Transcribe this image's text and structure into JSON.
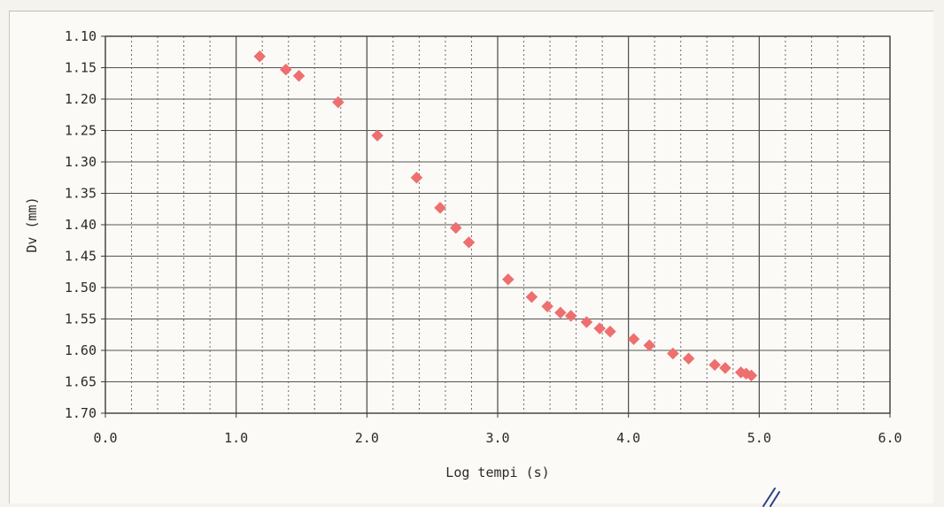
{
  "chart_data": {
    "type": "scatter",
    "xlabel": "Log tempi (s)",
    "ylabel": "Dv (mm)",
    "xlim": [
      0.0,
      6.0
    ],
    "ylim": [
      1.1,
      1.7
    ],
    "y_inverted": true,
    "grid": true,
    "x_ticks": [
      "0.0",
      "1.0",
      "2.0",
      "3.0",
      "4.0",
      "5.0",
      "6.0"
    ],
    "y_ticks": [
      "1.10",
      "1.15",
      "1.20",
      "1.25",
      "1.30",
      "1.35",
      "1.40",
      "1.45",
      "1.50",
      "1.55",
      "1.60",
      "1.65",
      "1.70"
    ],
    "marker": "diamond",
    "marker_color": "#ee6f6f",
    "series": [
      {
        "points": [
          [
            1.18,
            1.132
          ],
          [
            1.38,
            1.153
          ],
          [
            1.48,
            1.163
          ],
          [
            1.78,
            1.205
          ],
          [
            2.08,
            1.258
          ],
          [
            2.38,
            1.325
          ],
          [
            2.56,
            1.373
          ],
          [
            2.68,
            1.405
          ],
          [
            2.78,
            1.428
          ],
          [
            3.08,
            1.487
          ],
          [
            3.26,
            1.515
          ],
          [
            3.38,
            1.53
          ],
          [
            3.48,
            1.54
          ],
          [
            3.56,
            1.545
          ],
          [
            3.68,
            1.555
          ],
          [
            3.78,
            1.565
          ],
          [
            3.86,
            1.57
          ],
          [
            4.04,
            1.582
          ],
          [
            4.16,
            1.592
          ],
          [
            4.34,
            1.605
          ],
          [
            4.46,
            1.613
          ],
          [
            4.66,
            1.623
          ],
          [
            4.74,
            1.628
          ],
          [
            4.86,
            1.635
          ],
          [
            4.9,
            1.637
          ],
          [
            4.94,
            1.64
          ]
        ]
      }
    ]
  }
}
